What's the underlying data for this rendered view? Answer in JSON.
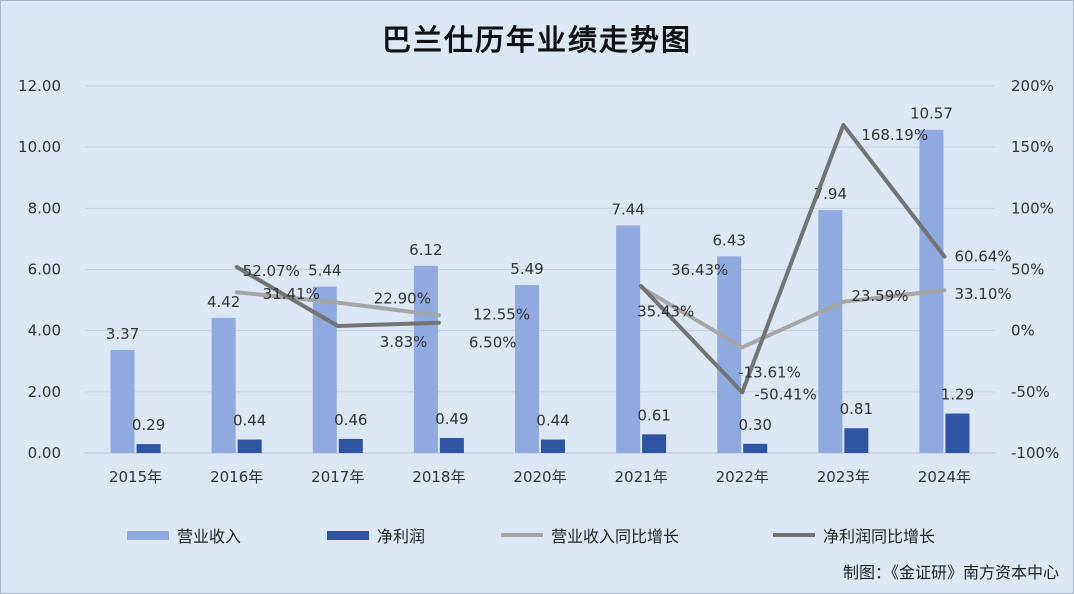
{
  "header": {
    "title": "巴兰仕历年业绩走势图"
  },
  "footer": {
    "credit": "制图：《金证研》南方资本中心"
  },
  "colors": {
    "revenue": "#8eaade",
    "profit": "#2f54a1",
    "revenue_growth": "#a5a5a5",
    "profit_growth": "#737373"
  },
  "chart_data": {
    "type": "bar",
    "categories": [
      "2015年",
      "2016年",
      "2017年",
      "2018年",
      "2020年",
      "2021年",
      "2022年",
      "2023年",
      "2024年"
    ],
    "y_left": {
      "ticks": [
        "0.00",
        "2.00",
        "4.00",
        "6.00",
        "8.00",
        "10.00",
        "12.00"
      ],
      "ylim": [
        0,
        12
      ]
    },
    "y_right": {
      "ticks": [
        "-100%",
        "-50%",
        "0%",
        "50%",
        "100%",
        "150%",
        "200%"
      ],
      "ylim": [
        -100,
        200
      ]
    },
    "grid": true,
    "legend_position": "bottom",
    "series": [
      {
        "name": "营业收入",
        "type": "bar",
        "axis": "left",
        "values": [
          3.37,
          4.42,
          5.44,
          6.12,
          5.49,
          7.44,
          6.43,
          7.94,
          10.57
        ],
        "labels": [
          "3.37",
          "4.42",
          "5.44",
          "6.12",
          "5.49",
          "7.44",
          "6.43",
          "7.94",
          "10.57"
        ]
      },
      {
        "name": "净利润",
        "type": "bar",
        "axis": "left",
        "values": [
          0.29,
          0.44,
          0.46,
          0.49,
          0.44,
          0.61,
          0.3,
          0.81,
          1.29
        ],
        "labels": [
          "0.29",
          "0.44",
          "0.46",
          "0.49",
          "0.44",
          "0.61",
          "0.30",
          "0.81",
          "1.29"
        ]
      },
      {
        "name": "营业收入同比增长",
        "type": "line",
        "axis": "right",
        "segments": [
          [
            1,
            2,
            3
          ],
          [
            5,
            6,
            7,
            8
          ]
        ],
        "values": [
          null,
          31.41,
          22.9,
          12.55,
          null,
          35.43,
          -13.61,
          23.59,
          33.1
        ],
        "labels": [
          "",
          "31.41%",
          "22.90%",
          "12.55%",
          "",
          "35.43%",
          "-13.61%",
          "23.59%",
          "33.10%"
        ]
      },
      {
        "name": "净利润同比增长",
        "type": "line",
        "axis": "right",
        "segments": [
          [
            1,
            2,
            3
          ],
          [
            5,
            6,
            7,
            8
          ]
        ],
        "values": [
          null,
          52.07,
          3.83,
          6.5,
          null,
          36.43,
          -50.41,
          168.19,
          60.64
        ],
        "labels": [
          "",
          "52.07%",
          "3.83%",
          "6.50%",
          "",
          "36.43%",
          "-50.41%",
          "168.19%",
          "60.64%"
        ]
      }
    ]
  }
}
